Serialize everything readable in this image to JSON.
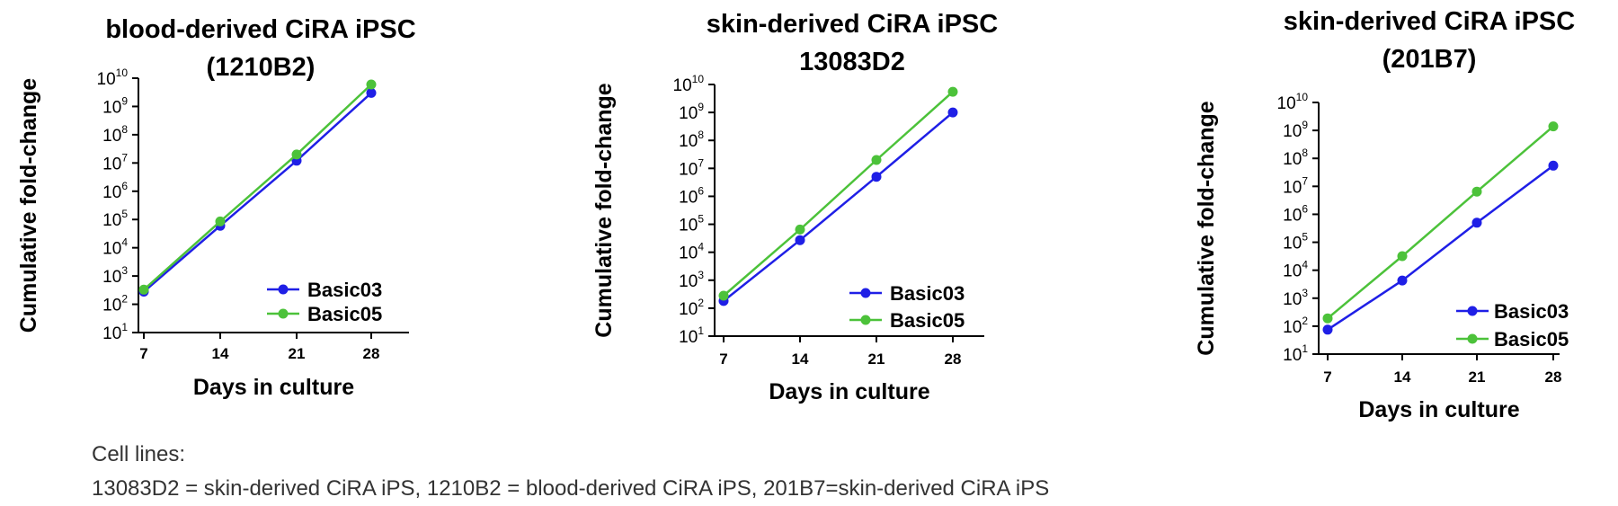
{
  "chart_data": [
    {
      "type": "line",
      "title": [
        "blood-derived CiRA iPSC",
        "(1210B2)"
      ],
      "xlabel": "Days in culture",
      "ylabel": "Cumulative fold-change",
      "x": [
        7,
        14,
        21,
        28
      ],
      "x_ticks": [
        "7",
        "14",
        "21",
        "28"
      ],
      "yscale": "log",
      "ylim_exp": [
        1,
        10
      ],
      "series": [
        {
          "name": "Basic03",
          "color": "#1f1fe6",
          "values": [
            280,
            60000,
            12000000,
            3000000000
          ]
        },
        {
          "name": "Basic05",
          "color": "#4cc23a",
          "values": [
            330,
            85000,
            20000000,
            6000000000
          ]
        }
      ],
      "legend": "bottom-right",
      "grid": false
    },
    {
      "type": "line",
      "title": [
        "skin-derived CiRA iPSC",
        "13083D2"
      ],
      "xlabel": "Days in culture",
      "ylabel": "Cumulative fold-change",
      "x": [
        7,
        14,
        21,
        28
      ],
      "x_ticks": [
        "7",
        "14",
        "21",
        "28"
      ],
      "yscale": "log",
      "ylim_exp": [
        1,
        10
      ],
      "series": [
        {
          "name": "Basic03",
          "color": "#1f1fe6",
          "values": [
            180,
            27000,
            5000000,
            1000000000
          ]
        },
        {
          "name": "Basic05",
          "color": "#4cc23a",
          "values": [
            280,
            65000,
            20000000,
            5500000000
          ]
        }
      ],
      "legend": "bottom-right",
      "grid": false
    },
    {
      "type": "line",
      "title": [
        "skin-derived CiRA iPSC",
        "(201B7)"
      ],
      "xlabel": "Days in culture",
      "ylabel": "Cumulative fold-change",
      "x": [
        7,
        14,
        21,
        28
      ],
      "x_ticks": [
        "7",
        "14",
        "21",
        "28"
      ],
      "yscale": "log",
      "ylim_exp": [
        1,
        10
      ],
      "series": [
        {
          "name": "Basic03",
          "color": "#1f1fe6",
          "values": [
            75,
            4300,
            500000,
            55000000
          ]
        },
        {
          "name": "Basic05",
          "color": "#4cc23a",
          "values": [
            190,
            32000,
            6500000,
            1400000000
          ]
        }
      ],
      "legend": "bottom-right",
      "grid": false
    }
  ],
  "caption": {
    "title": "Cell lines:",
    "text": "13083D2 = skin-derived CiRA iPS, 1210B2 = blood-derived CiRA iPS, 201B7=skin-derived CiRA iPS"
  }
}
